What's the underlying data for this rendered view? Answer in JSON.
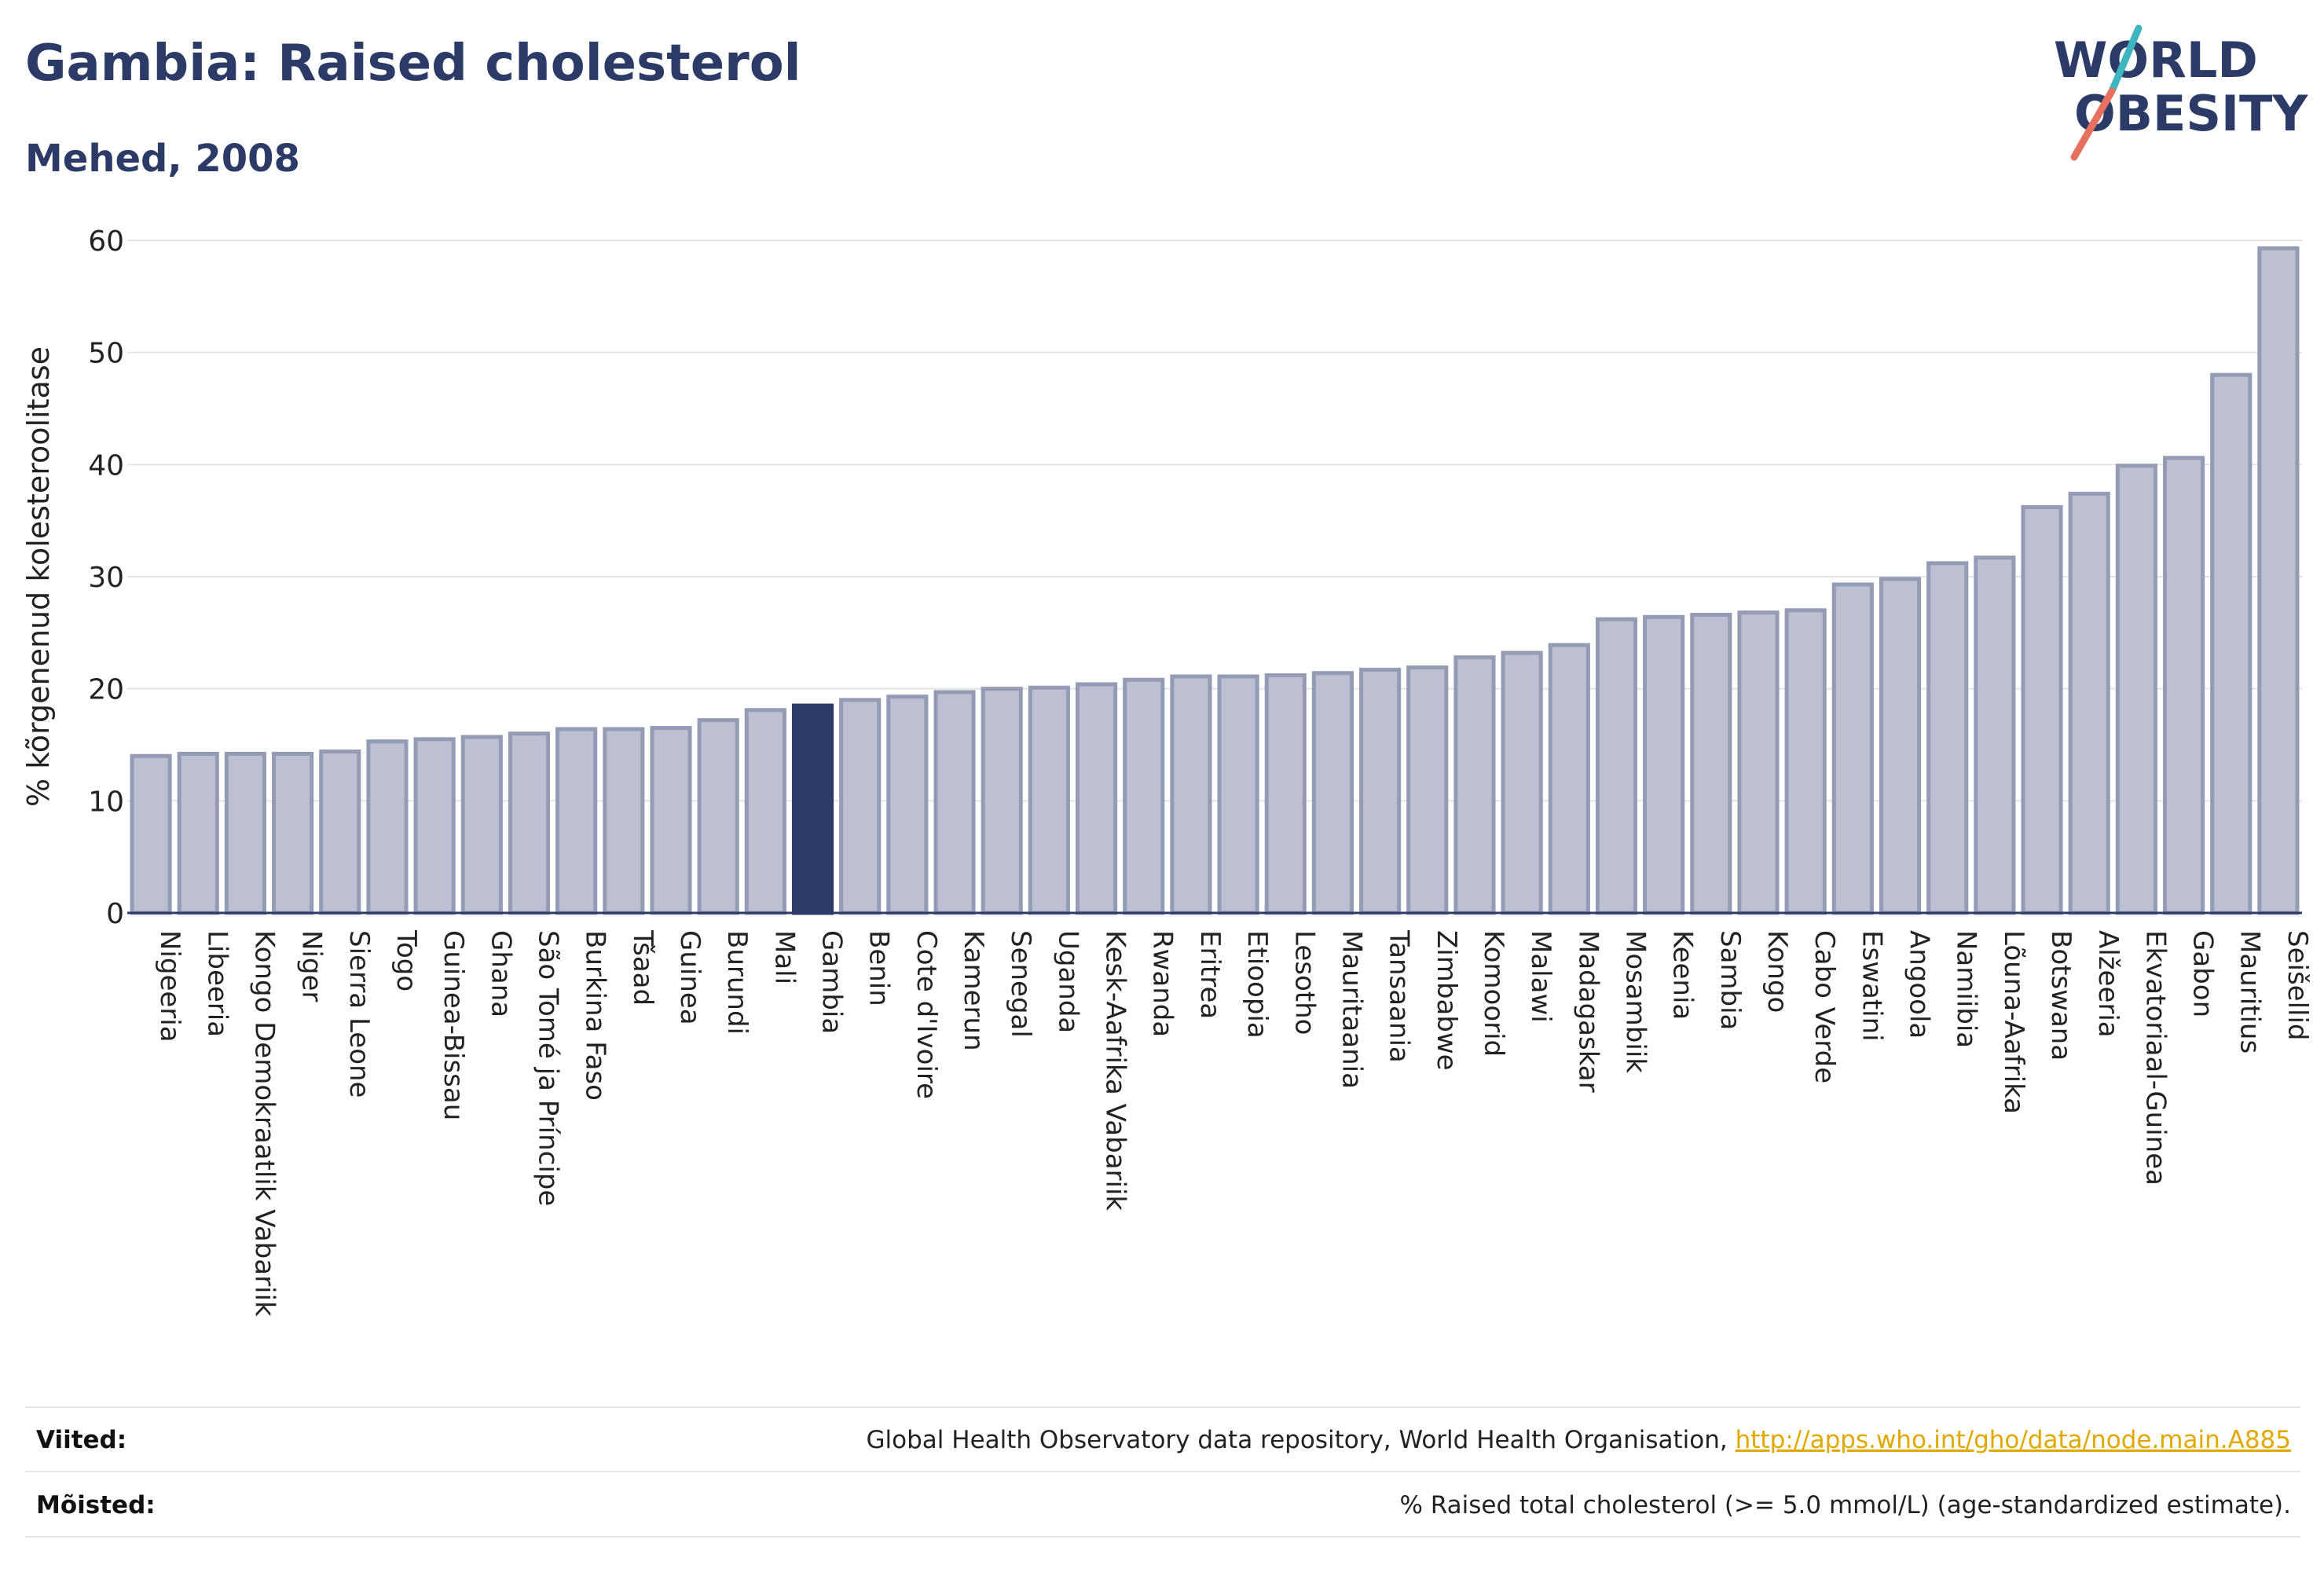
{
  "header": {
    "title": "Gambia: Raised cholesterol",
    "subtitle": "Mehed, 2008"
  },
  "logo": {
    "line1": "WORLD",
    "line2": "OBESITY"
  },
  "colors": {
    "title": "#2b3a67",
    "bar_fill": "#bcc0d0",
    "bar_stroke": "#959ab5",
    "highlight": "#2b3a67",
    "link": "#e0a800",
    "logo_teal": "#3fb5c0",
    "logo_coral": "#e8705e"
  },
  "chart_data": {
    "type": "bar",
    "ylabel": "% kõrgenenud kolesteroolitase",
    "xlabel": "",
    "ylim": [
      0,
      60
    ],
    "yticks": [
      0,
      10,
      20,
      30,
      40,
      50,
      60
    ],
    "grid": true,
    "highlight": "Gambia",
    "categories": [
      "Nigeeria",
      "Libeeria",
      "Kongo Demokraatlik Vabariik",
      "Niger",
      "Sierra Leone",
      "Togo",
      "Guinea-Bissau",
      "Ghana",
      "São Tomé ja Príncipe",
      "Burkina Faso",
      "Tšaad",
      "Guinea",
      "Burundi",
      "Mali",
      "Gambia",
      "Benin",
      "Cote d'Ivoire",
      "Kamerun",
      "Senegal",
      "Uganda",
      "Kesk-Aafrika Vabariik",
      "Rwanda",
      "Eritrea",
      "Etioopia",
      "Lesotho",
      "Mauritaania",
      "Tansaania",
      "Zimbabwe",
      "Komoorid",
      "Malawi",
      "Madagaskar",
      "Mosambiik",
      "Keenia",
      "Sambia",
      "Kongo",
      "Cabo Verde",
      "Eswatini",
      "Angoola",
      "Namiibia",
      "Lõuna-Aafrika",
      "Botswana",
      "Alžeeria",
      "Ekvatoriaal-Guinea",
      "Gabon",
      "Mauritius",
      "Seišellid"
    ],
    "values": [
      14.0,
      14.2,
      14.2,
      14.2,
      14.4,
      15.3,
      15.5,
      15.7,
      16.0,
      16.4,
      16.4,
      16.5,
      17.2,
      18.1,
      18.5,
      19.0,
      19.3,
      19.7,
      20.0,
      20.1,
      20.4,
      20.8,
      21.1,
      21.1,
      21.2,
      21.4,
      21.7,
      21.9,
      22.8,
      23.2,
      23.9,
      26.2,
      26.4,
      26.6,
      26.8,
      27.0,
      29.3,
      29.8,
      31.2,
      31.7,
      36.2,
      37.4,
      39.9,
      40.6,
      48.0,
      59.3
    ]
  },
  "footer": {
    "sources_label": "Viited:",
    "sources_text": "Global Health Observatory data repository, World Health Organisation,",
    "sources_link": "http://apps.who.int/gho/data/node.main.A885",
    "definitions_label": "Mõisted:",
    "definitions_text": "% Raised total cholesterol (>= 5.0 mmol/L) (age-standardized estimate)."
  }
}
